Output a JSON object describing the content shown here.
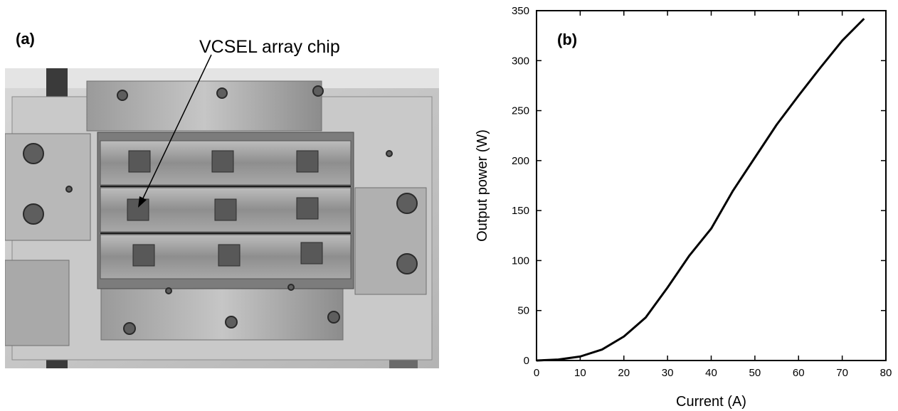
{
  "panel_a": {
    "label": "(a)",
    "annotation": "VCSEL array chip"
  },
  "chart_data": {
    "type": "line",
    "panel_label": "(b)",
    "xlabel": "Current (A)",
    "ylabel": "Output power (W)",
    "xlim": [
      0,
      80
    ],
    "ylim": [
      0,
      350
    ],
    "xticks": [
      0,
      10,
      20,
      30,
      40,
      50,
      60,
      70,
      80
    ],
    "yticks": [
      0,
      50,
      100,
      150,
      200,
      250,
      300,
      350
    ],
    "grid": false,
    "series": [
      {
        "color": "#000000",
        "x": [
          0,
          5,
          10,
          15,
          20,
          25,
          30,
          35,
          40,
          45,
          50,
          55,
          60,
          65,
          70,
          75
        ],
        "y": [
          0,
          1,
          4,
          11,
          24,
          43,
          73,
          105,
          132,
          170,
          203,
          236,
          265,
          293,
          320,
          342
        ]
      }
    ]
  }
}
